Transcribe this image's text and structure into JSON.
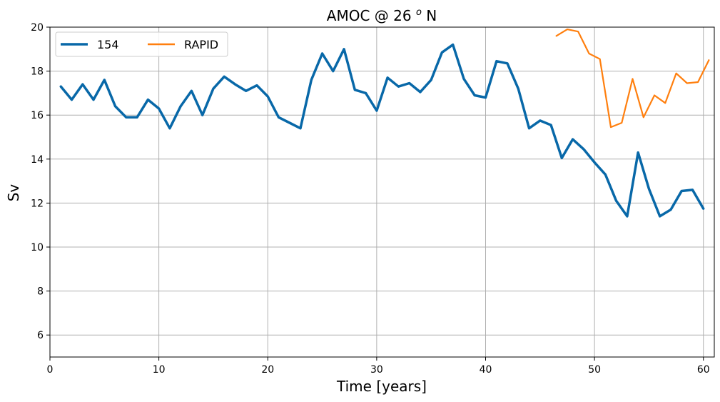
{
  "chart_data": {
    "type": "line",
    "title_main": "AMOC @ 26 ",
    "title_sup": "o",
    "title_tail": " N",
    "xlabel": "Time [years]",
    "ylabel": "Sv",
    "xlim": [
      0,
      61
    ],
    "ylim": [
      5,
      20
    ],
    "xticks": [
      0,
      10,
      20,
      30,
      40,
      50,
      60
    ],
    "yticks": [
      6,
      8,
      10,
      12,
      14,
      16,
      18,
      20
    ],
    "grid": true,
    "legend_position": "top-left",
    "series": [
      {
        "name": "154",
        "color": "#0868a8",
        "x": [
          1,
          2,
          3,
          4,
          5,
          6,
          7,
          8,
          9,
          10,
          11,
          12,
          13,
          14,
          15,
          16,
          17,
          18,
          19,
          20,
          21,
          22,
          23,
          24,
          25,
          26,
          27,
          28,
          29,
          30,
          31,
          32,
          33,
          34,
          35,
          36,
          37,
          38,
          39,
          40,
          41,
          42,
          43,
          44,
          45,
          46,
          47,
          48,
          49,
          50,
          51,
          52,
          53,
          54,
          55,
          56,
          57,
          58,
          59,
          60
        ],
        "y": [
          17.3,
          16.7,
          17.4,
          16.7,
          17.6,
          16.4,
          15.9,
          15.9,
          16.7,
          16.3,
          15.4,
          16.4,
          17.1,
          16.0,
          17.2,
          17.75,
          17.4,
          17.1,
          17.35,
          16.85,
          15.9,
          15.65,
          15.4,
          17.6,
          18.8,
          18.0,
          19.0,
          17.15,
          17.0,
          16.2,
          17.7,
          17.3,
          17.45,
          17.05,
          17.6,
          18.85,
          19.2,
          17.65,
          16.9,
          16.8,
          18.45,
          18.35,
          17.2,
          15.4,
          15.75,
          15.55,
          14.05,
          14.9,
          14.45,
          13.85,
          13.3,
          12.1,
          11.4,
          14.3,
          12.65,
          11.4,
          11.7,
          12.55,
          12.6,
          11.75
        ]
      },
      {
        "name": "RAPID",
        "color": "#ff7f0e",
        "x": [
          46.5,
          47.5,
          48.5,
          49.5,
          50.5,
          51.5,
          52.5,
          53.5,
          54.5,
          55.5,
          56.5,
          57.5,
          58.5,
          59.5,
          60.5
        ],
        "y": [
          19.6,
          19.9,
          19.8,
          18.8,
          18.55,
          15.45,
          15.65,
          17.65,
          15.9,
          16.9,
          16.55,
          17.9,
          17.45,
          17.5,
          18.5
        ]
      }
    ]
  }
}
